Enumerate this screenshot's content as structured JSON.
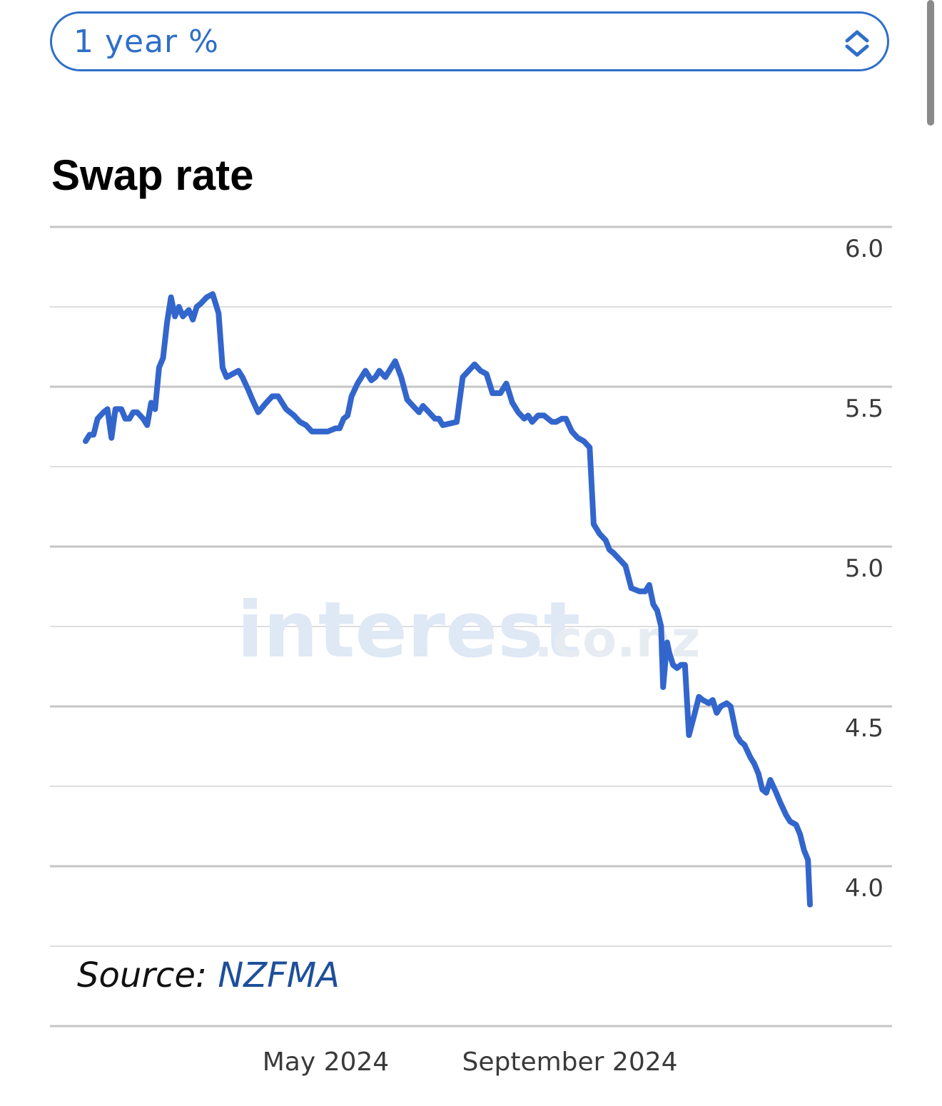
{
  "selector": {
    "value": "1 year %",
    "icon": "chevron-updown-icon",
    "accent_color": "#2f6fc8"
  },
  "chart": {
    "title": "Swap rate",
    "source_label": "Source:",
    "source_name": "NZFMA",
    "watermark_main": "interest",
    "watermark_suffix": ".co.nz"
  },
  "chart_data": {
    "type": "line",
    "title": "Swap rate",
    "xlabel": "",
    "ylabel": "",
    "ylim": [
      3.75,
      6.0
    ],
    "y_ticks": [
      "6.0",
      "5.5",
      "5.0",
      "4.5",
      "4.0"
    ],
    "y_tick_values": [
      6.0,
      5.5,
      5.0,
      4.5,
      4.0
    ],
    "x_ticks": [
      "May 2024",
      "September 2024"
    ],
    "x_tick_dates": [
      "2024-05-01",
      "2024-09-01"
    ],
    "xlim": [
      "2024-01-01",
      "2024-12-31"
    ],
    "grid": true,
    "line_color": "#3366cc",
    "series": [
      {
        "name": "",
        "points": [
          [
            "2024-01-01",
            5.33
          ],
          [
            "2024-01-03",
            5.35
          ],
          [
            "2024-01-05",
            5.35
          ],
          [
            "2024-01-07",
            5.4
          ],
          [
            "2024-01-10",
            5.42
          ],
          [
            "2024-01-12",
            5.43
          ],
          [
            "2024-01-14",
            5.34
          ],
          [
            "2024-01-16",
            5.43
          ],
          [
            "2024-01-19",
            5.43
          ],
          [
            "2024-01-21",
            5.4
          ],
          [
            "2024-01-23",
            5.4
          ],
          [
            "2024-01-25",
            5.42
          ],
          [
            "2024-01-27",
            5.42
          ],
          [
            "2024-01-30",
            5.4
          ],
          [
            "2024-02-01",
            5.38
          ],
          [
            "2024-02-03",
            5.45
          ],
          [
            "2024-02-05",
            5.43
          ],
          [
            "2024-02-07",
            5.56
          ],
          [
            "2024-02-09",
            5.59
          ],
          [
            "2024-02-11",
            5.7
          ],
          [
            "2024-02-13",
            5.78
          ],
          [
            "2024-02-15",
            5.72
          ],
          [
            "2024-02-17",
            5.75
          ],
          [
            "2024-02-19",
            5.72
          ],
          [
            "2024-02-22",
            5.74
          ],
          [
            "2024-02-24",
            5.71
          ],
          [
            "2024-02-26",
            5.75
          ],
          [
            "2024-02-28",
            5.76
          ],
          [
            "2024-03-02",
            5.78
          ],
          [
            "2024-03-05",
            5.79
          ],
          [
            "2024-03-08",
            5.73
          ],
          [
            "2024-03-10",
            5.56
          ],
          [
            "2024-03-12",
            5.53
          ],
          [
            "2024-03-15",
            5.54
          ],
          [
            "2024-03-18",
            5.55
          ],
          [
            "2024-03-20",
            5.53
          ],
          [
            "2024-03-23",
            5.49
          ],
          [
            "2024-03-25",
            5.46
          ],
          [
            "2024-03-28",
            5.42
          ],
          [
            "2024-04-01",
            5.45
          ],
          [
            "2024-04-04",
            5.47
          ],
          [
            "2024-04-07",
            5.47
          ],
          [
            "2024-04-11",
            5.43
          ],
          [
            "2024-04-15",
            5.41
          ],
          [
            "2024-04-18",
            5.39
          ],
          [
            "2024-04-21",
            5.38
          ],
          [
            "2024-04-24",
            5.36
          ],
          [
            "2024-05-02",
            5.36
          ],
          [
            "2024-05-06",
            5.37
          ],
          [
            "2024-05-08",
            5.37
          ],
          [
            "2024-05-10",
            5.4
          ],
          [
            "2024-05-12",
            5.41
          ],
          [
            "2024-05-14",
            5.47
          ],
          [
            "2024-05-17",
            5.51
          ],
          [
            "2024-05-19",
            5.53
          ],
          [
            "2024-05-21",
            5.55
          ],
          [
            "2024-05-24",
            5.52
          ],
          [
            "2024-05-26",
            5.53
          ],
          [
            "2024-05-28",
            5.55
          ],
          [
            "2024-05-31",
            5.53
          ],
          [
            "2024-06-02",
            5.55
          ],
          [
            "2024-06-05",
            5.58
          ],
          [
            "2024-06-08",
            5.53
          ],
          [
            "2024-06-11",
            5.46
          ],
          [
            "2024-06-14",
            5.44
          ],
          [
            "2024-06-17",
            5.42
          ],
          [
            "2024-06-19",
            5.44
          ],
          [
            "2024-06-22",
            5.42
          ],
          [
            "2024-06-25",
            5.4
          ],
          [
            "2024-06-27",
            5.4
          ],
          [
            "2024-06-29",
            5.38
          ],
          [
            "2024-07-06",
            5.39
          ],
          [
            "2024-07-09",
            5.53
          ],
          [
            "2024-07-12",
            5.55
          ],
          [
            "2024-07-15",
            5.57
          ],
          [
            "2024-07-18",
            5.55
          ],
          [
            "2024-07-21",
            5.54
          ],
          [
            "2024-07-24",
            5.48
          ],
          [
            "2024-07-28",
            5.48
          ],
          [
            "2024-07-31",
            5.51
          ],
          [
            "2024-08-03",
            5.45
          ],
          [
            "2024-08-06",
            5.42
          ],
          [
            "2024-08-09",
            5.4
          ],
          [
            "2024-08-11",
            5.41
          ],
          [
            "2024-08-13",
            5.39
          ],
          [
            "2024-08-16",
            5.41
          ],
          [
            "2024-08-19",
            5.41
          ],
          [
            "2024-08-23",
            5.39
          ],
          [
            "2024-08-25",
            5.39
          ],
          [
            "2024-08-28",
            5.4
          ],
          [
            "2024-08-30",
            5.4
          ],
          [
            "2024-09-02",
            5.36
          ],
          [
            "2024-09-05",
            5.34
          ],
          [
            "2024-09-08",
            5.33
          ],
          [
            "2024-09-11",
            5.31
          ],
          [
            "2024-09-13",
            5.07
          ],
          [
            "2024-09-16",
            5.04
          ],
          [
            "2024-09-19",
            5.02
          ],
          [
            "2024-09-21",
            4.99
          ],
          [
            "2024-09-23",
            4.98
          ],
          [
            "2024-09-26",
            4.96
          ],
          [
            "2024-09-29",
            4.94
          ],
          [
            "2024-10-02",
            4.87
          ],
          [
            "2024-10-06",
            4.86
          ],
          [
            "2024-10-09",
            4.86
          ],
          [
            "2024-10-11",
            4.88
          ],
          [
            "2024-10-13",
            4.82
          ],
          [
            "2024-10-15",
            4.8
          ],
          [
            "2024-10-17",
            4.75
          ],
          [
            "2024-10-18",
            4.56
          ],
          [
            "2024-10-20",
            4.7
          ],
          [
            "2024-10-21",
            4.67
          ],
          [
            "2024-10-23",
            4.63
          ],
          [
            "2024-10-25",
            4.62
          ],
          [
            "2024-10-27",
            4.63
          ],
          [
            "2024-10-29",
            4.63
          ],
          [
            "2024-10-31",
            4.41
          ],
          [
            "2024-11-03",
            4.48
          ],
          [
            "2024-11-05",
            4.53
          ],
          [
            "2024-11-07",
            4.52
          ],
          [
            "2024-11-10",
            4.51
          ],
          [
            "2024-11-12",
            4.52
          ],
          [
            "2024-11-14",
            4.48
          ],
          [
            "2024-11-16",
            4.5
          ],
          [
            "2024-11-19",
            4.51
          ],
          [
            "2024-11-21",
            4.5
          ],
          [
            "2024-11-24",
            4.41
          ],
          [
            "2024-11-26",
            4.39
          ],
          [
            "2024-11-28",
            4.38
          ],
          [
            "2024-12-01",
            4.34
          ],
          [
            "2024-12-03",
            4.32
          ],
          [
            "2024-12-05",
            4.29
          ],
          [
            "2024-12-07",
            4.24
          ],
          [
            "2024-12-09",
            4.23
          ],
          [
            "2024-12-11",
            4.27
          ],
          [
            "2024-12-14",
            4.23
          ],
          [
            "2024-12-16",
            4.2
          ],
          [
            "2024-12-19",
            4.16
          ],
          [
            "2024-12-21",
            4.14
          ],
          [
            "2024-12-24",
            4.13
          ],
          [
            "2024-12-26",
            4.1
          ],
          [
            "2024-12-28",
            4.05
          ],
          [
            "2024-12-30",
            4.02
          ],
          [
            "2024-12-31",
            3.88
          ]
        ]
      }
    ]
  }
}
